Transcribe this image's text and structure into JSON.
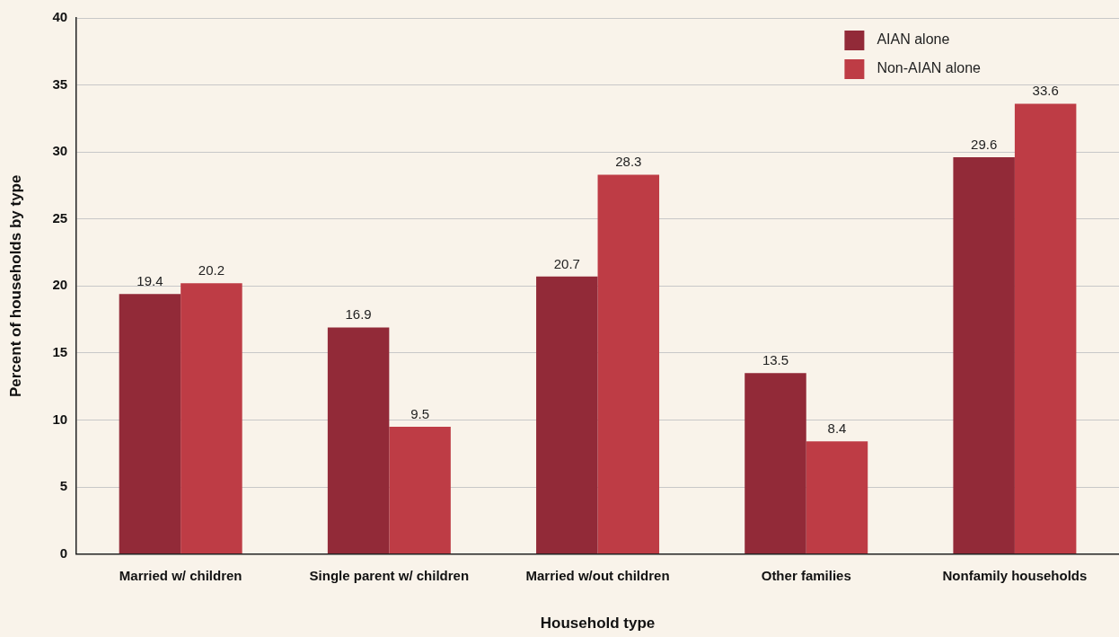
{
  "chart_data": {
    "type": "bar",
    "xlabel": "Household type",
    "ylabel": "Percent of households by type",
    "categories": [
      "Married w/ children",
      "Single parent w/ children",
      "Married w/out children",
      "Other families",
      "Nonfamily households"
    ],
    "series": [
      {
        "name": "AIAN alone",
        "color": "#922a38",
        "values": [
          19.4,
          16.9,
          20.7,
          13.5,
          29.6
        ]
      },
      {
        "name": "Non-AIAN alone",
        "color": "#be3c45",
        "values": [
          20.2,
          9.5,
          28.3,
          8.4,
          33.6
        ]
      }
    ],
    "ylim": [
      0,
      40
    ],
    "yticks": [
      0,
      5,
      10,
      15,
      20,
      25,
      30,
      35,
      40
    ],
    "grid": "y",
    "legend": "top right",
    "data_labels": true
  }
}
